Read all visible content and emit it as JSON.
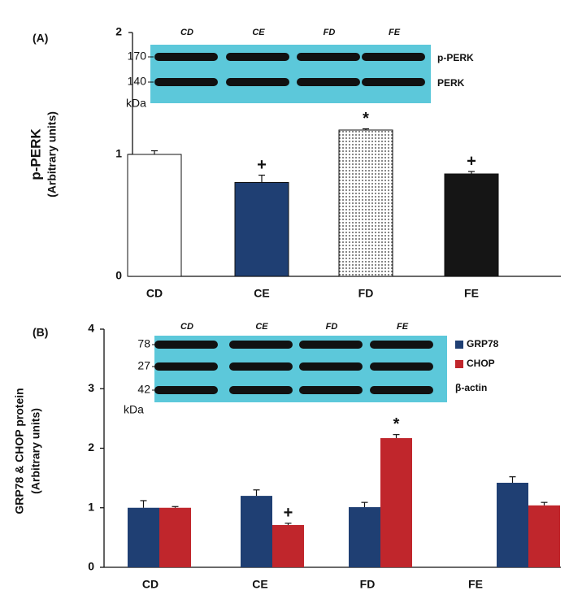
{
  "chart_data": [
    {
      "type": "bar",
      "panel": "(A)",
      "ylabel": "p-PERK",
      "ylabel_note": "(Arbitrary units)",
      "categories": [
        "CD",
        "CE",
        "FD",
        "FE"
      ],
      "values": [
        1.0,
        0.77,
        1.2,
        0.84
      ],
      "errors": [
        0.03,
        0.06,
        0.01,
        0.02
      ],
      "colors": [
        "#ffffff",
        "#1f3f73",
        "#ffffff",
        "#151515"
      ],
      "patterns": [
        null,
        null,
        "dots",
        null
      ],
      "significance": [
        null,
        "+",
        "*",
        "+"
      ],
      "ylim": [
        0,
        2
      ],
      "yticks": [
        0,
        1,
        2
      ],
      "blot": {
        "lanes": [
          "CD",
          "CE",
          "FD",
          "FE"
        ],
        "markers": [
          "170",
          "140"
        ],
        "unit": "kDa",
        "bands": [
          "p-PERK",
          "PERK"
        ]
      }
    },
    {
      "type": "grouped_bar",
      "panel": "(B)",
      "ylabel": "GRP78 & CHOP protein",
      "ylabel_note": "(Arbitrary units)",
      "categories": [
        "CD",
        "CE",
        "FD",
        "FE"
      ],
      "series": [
        {
          "name": "GRP78",
          "color": "#1f3f73",
          "values": [
            1.0,
            1.2,
            1.01,
            1.42
          ],
          "errors": [
            0.12,
            0.1,
            0.08,
            0.1
          ],
          "significance": [
            null,
            null,
            null,
            null
          ]
        },
        {
          "name": "CHOP",
          "color": "#c0262c",
          "values": [
            1.0,
            0.71,
            2.17,
            1.04
          ],
          "errors": [
            0.02,
            0.03,
            0.06,
            0.05
          ],
          "significance": [
            null,
            "+",
            "*",
            null
          ]
        }
      ],
      "ylim": [
        0,
        4
      ],
      "yticks": [
        0,
        1,
        2,
        3,
        4
      ],
      "blot": {
        "lanes": [
          "CD",
          "CE",
          "FD",
          "FE"
        ],
        "markers": [
          "78",
          "27",
          "42"
        ],
        "unit": "kDa",
        "bands": [
          "β-actin"
        ]
      }
    }
  ]
}
